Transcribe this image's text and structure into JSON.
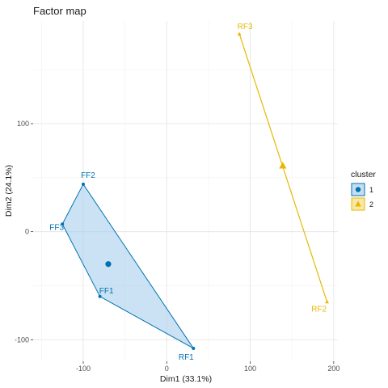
{
  "chart_data": {
    "type": "scatter",
    "title": "Factor map",
    "xlabel": "Dim1 (33.1%)",
    "ylabel": "Dim2 (24.1%)",
    "xlim": [
      -160,
      205
    ],
    "ylim": [
      -120,
      195
    ],
    "x_ticks": [
      -100,
      0,
      100,
      200
    ],
    "x_tick_labels": [
      "-100",
      "0",
      "100",
      "200"
    ],
    "y_ticks": [
      -100,
      0,
      100
    ],
    "y_tick_labels": [
      "-100",
      "0",
      "100"
    ],
    "grid": true,
    "legend": {
      "title": "cluster",
      "position": "right",
      "entries": [
        {
          "label": "1",
          "color": "#0072B2",
          "shape": "circle"
        },
        {
          "label": "2",
          "color": "#E7B800",
          "shape": "triangle"
        }
      ]
    },
    "series": [
      {
        "name": "1",
        "color": "#0072B2",
        "fill": "#9ECAE9",
        "points": [
          {
            "label": "FF2",
            "x": -100,
            "y": 44
          },
          {
            "label": "FF3",
            "x": -125,
            "y": 7
          },
          {
            "label": "FF1",
            "x": -80,
            "y": -60
          },
          {
            "label": "RF1",
            "x": 32,
            "y": -108
          }
        ],
        "hull_order": [
          "FF2",
          "FF3",
          "FF1",
          "RF1"
        ],
        "center": {
          "x": -70,
          "y": -30
        }
      },
      {
        "name": "2",
        "color": "#E7B800",
        "fill": "#F5D76E",
        "points": [
          {
            "label": "RF3",
            "x": 87,
            "y": 183
          },
          {
            "label": "RF2",
            "x": 192,
            "y": -65
          }
        ],
        "hull_order": [
          "RF3",
          "RF2"
        ],
        "center": {
          "x": 139,
          "y": 61
        }
      }
    ]
  }
}
